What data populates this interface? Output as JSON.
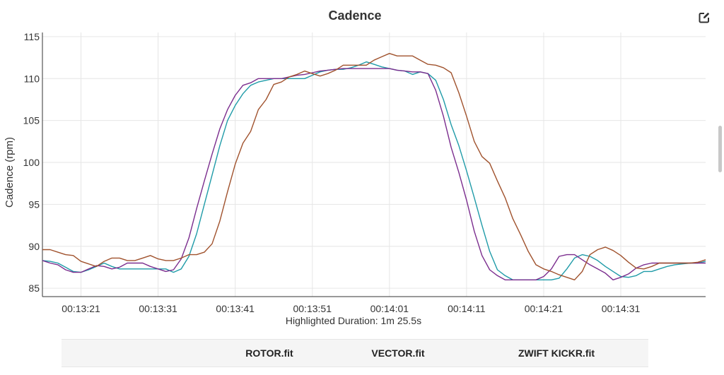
{
  "header": {
    "title": "Cadence",
    "edit_icon": "edit-icon"
  },
  "footer": {
    "duration_text": "Highlighted Duration: 1m 25.5s"
  },
  "legend": {
    "columns": [
      "ROTOR.fit",
      "VECTOR.fit",
      "ZWIFT KICKR.fit"
    ]
  },
  "chart_data": {
    "type": "line",
    "title": "Cadence",
    "ylabel": "Cadence (rpm)",
    "xlabel": "",
    "ylim": [
      84,
      115.5
    ],
    "yticks": [
      85,
      90,
      95,
      100,
      105,
      110,
      115
    ],
    "xlim": [
      "00:13:16",
      "00:14:42"
    ],
    "xticks": [
      "00:13:21",
      "00:13:31",
      "00:13:41",
      "00:13:51",
      "00:14:01",
      "00:14:11",
      "00:14:21",
      "00:14:31"
    ],
    "grid": true,
    "series": [
      {
        "color": "#1f9ba8",
        "x": [
          "00:13:16",
          "00:13:17",
          "00:13:18",
          "00:13:19",
          "00:13:20",
          "00:13:21",
          "00:13:22",
          "00:13:23",
          "00:13:24",
          "00:13:25",
          "00:13:26",
          "00:13:27",
          "00:13:28",
          "00:13:29",
          "00:13:30",
          "00:13:31",
          "00:13:32",
          "00:13:33",
          "00:13:34",
          "00:13:35",
          "00:13:36",
          "00:13:37",
          "00:13:38",
          "00:13:39",
          "00:13:40",
          "00:13:41",
          "00:13:42",
          "00:13:43",
          "00:13:44",
          "00:13:45",
          "00:13:46",
          "00:13:47",
          "00:13:48",
          "00:13:49",
          "00:13:50",
          "00:13:51",
          "00:13:52",
          "00:13:53",
          "00:13:54",
          "00:13:55",
          "00:13:56",
          "00:13:57",
          "00:13:58",
          "00:13:59",
          "00:14:00",
          "00:14:01",
          "00:14:02",
          "00:14:03",
          "00:14:04",
          "00:14:05",
          "00:14:06",
          "00:14:07",
          "00:14:08",
          "00:14:09",
          "00:14:10",
          "00:14:11",
          "00:14:12",
          "00:14:13",
          "00:14:14",
          "00:14:15",
          "00:14:16",
          "00:14:17",
          "00:14:18",
          "00:14:19",
          "00:14:20",
          "00:14:21",
          "00:14:22",
          "00:14:23",
          "00:14:24",
          "00:14:25",
          "00:14:26",
          "00:14:27",
          "00:14:28",
          "00:14:29",
          "00:14:30",
          "00:14:31",
          "00:14:32",
          "00:14:33",
          "00:14:34",
          "00:14:35",
          "00:14:36",
          "00:14:37",
          "00:14:38",
          "00:14:39",
          "00:14:40",
          "00:14:41",
          "00:14:42"
        ],
        "values": [
          88.3,
          88.2,
          88.0,
          87.5,
          87.0,
          86.9,
          87.2,
          87.6,
          88.0,
          87.6,
          87.3,
          87.3,
          87.3,
          87.3,
          87.3,
          87.3,
          87.3,
          86.9,
          87.3,
          88.8,
          91.5,
          95.0,
          98.5,
          102.0,
          105.0,
          106.8,
          108.2,
          109.2,
          109.6,
          109.8,
          110.0,
          110.0,
          110.0,
          110.0,
          110.0,
          110.4,
          110.8,
          111.0,
          111.1,
          111.1,
          111.3,
          111.6,
          112.0,
          111.7,
          111.4,
          111.2,
          111.0,
          110.9,
          110.5,
          110.8,
          110.6,
          109.8,
          107.5,
          104.5,
          102.0,
          99.0,
          95.8,
          92.5,
          89.4,
          87.2,
          86.5,
          86.0,
          86.0,
          86.0,
          86.0,
          86.0,
          86.0,
          86.2,
          87.3,
          88.6,
          89.0,
          88.8,
          88.3,
          87.6,
          87.0,
          86.4,
          86.3,
          86.5,
          87.0,
          87.0,
          87.3,
          87.6,
          87.8,
          87.9,
          88.0,
          88.0,
          88.2
        ]
      },
      {
        "color": "#7b2d8e",
        "x": [
          "00:13:16",
          "00:13:17",
          "00:13:18",
          "00:13:19",
          "00:13:20",
          "00:13:21",
          "00:13:22",
          "00:13:23",
          "00:13:24",
          "00:13:25",
          "00:13:26",
          "00:13:27",
          "00:13:28",
          "00:13:29",
          "00:13:30",
          "00:13:31",
          "00:13:32",
          "00:13:33",
          "00:13:34",
          "00:13:35",
          "00:13:36",
          "00:13:37",
          "00:13:38",
          "00:13:39",
          "00:13:40",
          "00:13:41",
          "00:13:42",
          "00:13:43",
          "00:13:44",
          "00:13:45",
          "00:13:46",
          "00:13:47",
          "00:13:48",
          "00:13:49",
          "00:13:50",
          "00:13:51",
          "00:13:52",
          "00:13:53",
          "00:13:54",
          "00:13:55",
          "00:13:56",
          "00:13:57",
          "00:13:58",
          "00:13:59",
          "00:14:00",
          "00:14:01",
          "00:14:02",
          "00:14:03",
          "00:14:04",
          "00:14:05",
          "00:14:06",
          "00:14:07",
          "00:14:08",
          "00:14:09",
          "00:14:10",
          "00:14:11",
          "00:14:12",
          "00:14:13",
          "00:14:14",
          "00:14:15",
          "00:14:16",
          "00:14:17",
          "00:14:18",
          "00:14:19",
          "00:14:20",
          "00:14:21",
          "00:14:22",
          "00:14:23",
          "00:14:24",
          "00:14:25",
          "00:14:26",
          "00:14:27",
          "00:14:28",
          "00:14:29",
          "00:14:30",
          "00:14:31",
          "00:14:32",
          "00:14:33",
          "00:14:34",
          "00:14:35",
          "00:14:36",
          "00:14:37",
          "00:14:38",
          "00:14:39",
          "00:14:40",
          "00:14:41",
          "00:14:42"
        ],
        "values": [
          88.3,
          88.0,
          87.8,
          87.2,
          86.9,
          86.9,
          87.3,
          87.7,
          87.6,
          87.3,
          87.5,
          88.0,
          88.0,
          88.0,
          87.6,
          87.3,
          87.0,
          87.2,
          88.5,
          91.0,
          94.5,
          97.8,
          101.0,
          104.0,
          106.3,
          108.0,
          109.2,
          109.5,
          110.0,
          110.0,
          110.0,
          110.0,
          110.2,
          110.4,
          110.5,
          110.7,
          110.9,
          111.0,
          111.1,
          111.2,
          111.2,
          111.2,
          111.2,
          111.2,
          111.2,
          111.2,
          111.0,
          110.9,
          110.8,
          110.8,
          110.6,
          108.6,
          105.5,
          101.8,
          98.8,
          95.5,
          91.8,
          88.9,
          87.2,
          86.5,
          86.0,
          86.0,
          86.0,
          86.0,
          86.0,
          86.4,
          87.3,
          88.8,
          89.0,
          89.0,
          88.4,
          87.8,
          87.3,
          86.8,
          86.0,
          86.3,
          86.7,
          87.4,
          87.8,
          88.0,
          88.0,
          88.0,
          88.0,
          88.0,
          88.0,
          88.0,
          88.0
        ]
      },
      {
        "color": "#a0522d",
        "x": [
          "00:13:16",
          "00:13:17",
          "00:13:18",
          "00:13:19",
          "00:13:20",
          "00:13:21",
          "00:13:22",
          "00:13:23",
          "00:13:24",
          "00:13:25",
          "00:13:26",
          "00:13:27",
          "00:13:28",
          "00:13:29",
          "00:13:30",
          "00:13:31",
          "00:13:32",
          "00:13:33",
          "00:13:34",
          "00:13:35",
          "00:13:36",
          "00:13:37",
          "00:13:38",
          "00:13:39",
          "00:13:40",
          "00:13:41",
          "00:13:42",
          "00:13:43",
          "00:13:44",
          "00:13:45",
          "00:13:46",
          "00:13:47",
          "00:13:48",
          "00:13:49",
          "00:13:50",
          "00:13:51",
          "00:13:52",
          "00:13:53",
          "00:13:54",
          "00:13:55",
          "00:13:56",
          "00:13:57",
          "00:13:58",
          "00:13:59",
          "00:14:00",
          "00:14:01",
          "00:14:02",
          "00:14:03",
          "00:14:04",
          "00:14:05",
          "00:14:06",
          "00:14:07",
          "00:14:08",
          "00:14:09",
          "00:14:10",
          "00:14:11",
          "00:14:12",
          "00:14:13",
          "00:14:14",
          "00:14:15",
          "00:14:16",
          "00:14:17",
          "00:14:18",
          "00:14:19",
          "00:14:20",
          "00:14:21",
          "00:14:22",
          "00:14:23",
          "00:14:24",
          "00:14:25",
          "00:14:26",
          "00:14:27",
          "00:14:28",
          "00:14:29",
          "00:14:30",
          "00:14:31",
          "00:14:32",
          "00:14:33",
          "00:14:34",
          "00:14:35",
          "00:14:36",
          "00:14:37",
          "00:14:38",
          "00:14:39",
          "00:14:40",
          "00:14:41",
          "00:14:42"
        ],
        "values": [
          89.6,
          89.6,
          89.3,
          89.0,
          88.9,
          88.2,
          87.9,
          87.6,
          88.2,
          88.6,
          88.6,
          88.3,
          88.3,
          88.6,
          88.9,
          88.5,
          88.3,
          88.3,
          88.6,
          89.0,
          89.0,
          89.3,
          90.3,
          93.0,
          96.5,
          99.8,
          102.3,
          103.7,
          106.3,
          107.5,
          109.3,
          109.6,
          110.2,
          110.5,
          110.9,
          110.6,
          110.3,
          110.6,
          111.0,
          111.6,
          111.6,
          111.6,
          111.6,
          112.2,
          112.6,
          113.0,
          112.7,
          112.7,
          112.7,
          112.2,
          111.7,
          111.6,
          111.3,
          110.7,
          108.3,
          105.5,
          102.5,
          100.7,
          99.9,
          97.8,
          95.8,
          93.3,
          91.4,
          89.4,
          87.8,
          87.3,
          87.0,
          86.6,
          86.3,
          86.0,
          87.0,
          89.0,
          89.6,
          89.9,
          89.5,
          88.9,
          88.1,
          87.4,
          87.3,
          87.6,
          88.0,
          88.0,
          88.0,
          88.0,
          88.0,
          88.1,
          88.4
        ]
      }
    ]
  }
}
